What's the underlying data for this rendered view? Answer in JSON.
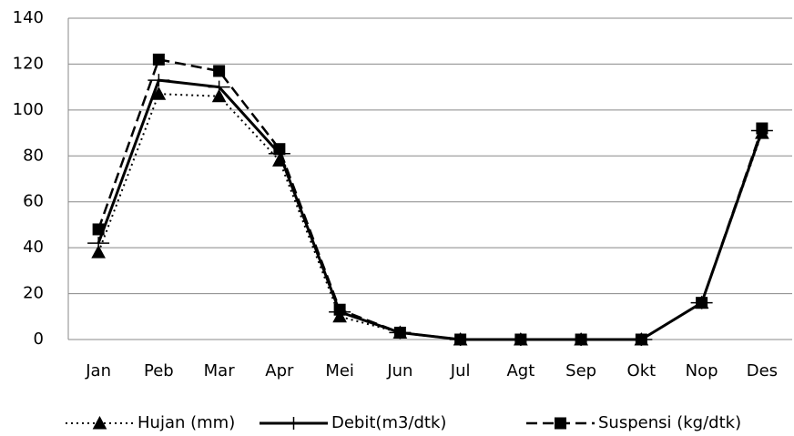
{
  "chart_data": {
    "type": "line",
    "categories": [
      "Jan",
      "Peb",
      "Mar",
      "Apr",
      "Mei",
      "Jun",
      "Jul",
      "Agt",
      "Sep",
      "Okt",
      "Nop",
      "Des"
    ],
    "series": [
      {
        "name": "Hujan (mm)",
        "color": "#000000",
        "dash": "dotted",
        "marker": "triangle",
        "values": [
          38,
          107,
          106,
          78,
          10,
          3,
          0,
          0,
          0,
          0,
          16,
          90
        ]
      },
      {
        "name": "Debit(m3/dtk)",
        "color": "#000000",
        "dash": "solid",
        "marker": "plus",
        "values": [
          42,
          113,
          110,
          81,
          12,
          3,
          0,
          0,
          0,
          0,
          16,
          91
        ]
      },
      {
        "name": "Suspensi (kg/dtk)",
        "color": "#000000",
        "dash": "dashed",
        "marker": "square",
        "values": [
          48,
          122,
          117,
          83,
          13,
          3,
          0,
          0,
          0,
          0,
          16,
          92
        ]
      }
    ],
    "ylim": [
      0,
      140
    ],
    "yticks": [
      0,
      20,
      40,
      60,
      80,
      100,
      120,
      140
    ],
    "grid": true,
    "legend": "bottom"
  }
}
